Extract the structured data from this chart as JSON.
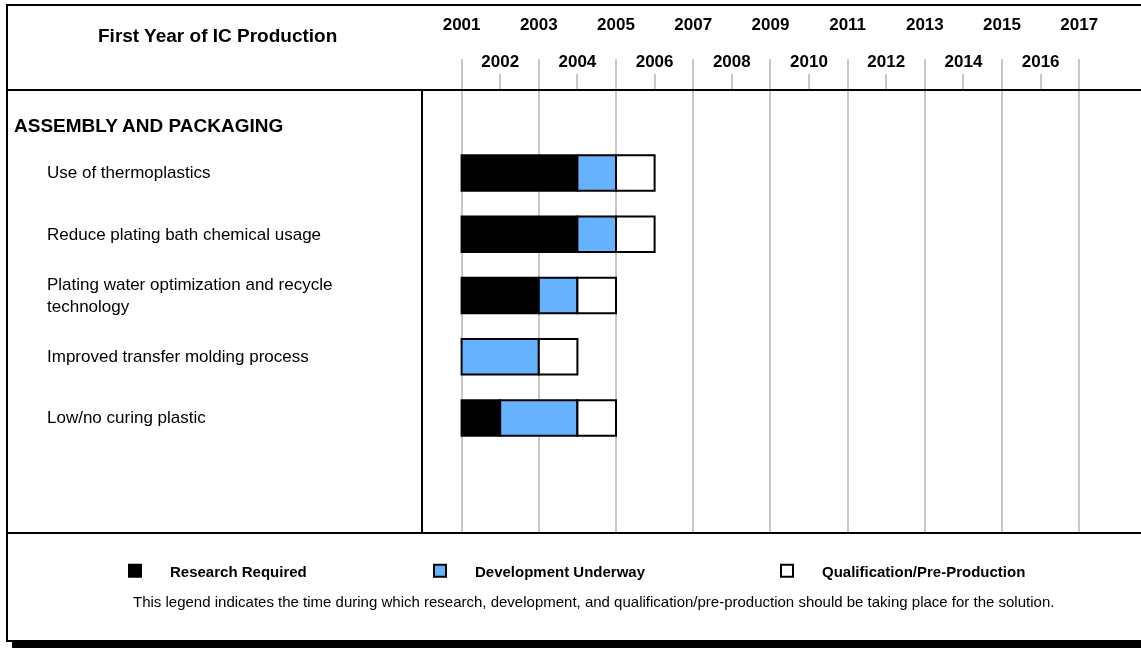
{
  "chart_data": {
    "type": "bar",
    "orientation": "horizontal",
    "xlabel": "First Year of IC Production",
    "ylabel": "ASSEMBLY AND PACKAGING",
    "categories": [
      "Use of thermoplastics",
      "Reduce plating bath chemical usage",
      "Plating water optimization and recycle technology",
      "Improved transfer molding process",
      "Low/no curing plastic"
    ],
    "series": [
      {
        "name": "Research Required",
        "color": "#000000",
        "base": [
          2001,
          2001,
          2001,
          null,
          2001
        ],
        "values": [
          3,
          3,
          2,
          null,
          1
        ]
      },
      {
        "name": "Development Underway",
        "color": "#66b2ff",
        "base": [
          2004,
          2004,
          2003,
          2001,
          2002
        ],
        "values": [
          1,
          1,
          1,
          2,
          2
        ]
      },
      {
        "name": "Qualification/Pre-Production",
        "color": "#ffffff",
        "base": [
          2005,
          2005,
          2004,
          2003,
          2004
        ],
        "values": [
          1,
          1,
          1,
          1,
          1
        ]
      }
    ],
    "xlim": [
      2000,
      2018.6
    ],
    "xticks": [
      2001,
      2003,
      2005,
      2007,
      2009,
      2011,
      2013,
      2015,
      2017
    ],
    "x2lim": [
      2000,
      2018.6
    ],
    "x2ticks": [
      2002,
      2004,
      2006,
      2008,
      2010,
      2012,
      2014,
      2016
    ],
    "grid": "x",
    "legend": "bottom",
    "annotations": [
      "This legend indicates the time during which research, development, and qualification/pre-production should be taking place for the solution."
    ]
  }
}
